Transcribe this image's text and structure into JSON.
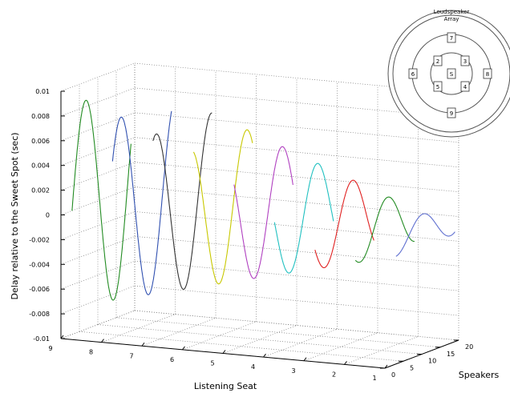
{
  "chart_data": {
    "type": "line",
    "subtype": "3d-line",
    "xlabel": "Listening Seat",
    "ylabel": "Speakers",
    "zlabel": "Delay relative to the Sweet Spot (sec)",
    "xlim": [
      1,
      9
    ],
    "xlim_reversed": true,
    "ylim": [
      0,
      20
    ],
    "zlim": [
      -0.01,
      0.01
    ],
    "x_ticks": [
      1,
      2,
      3,
      4,
      5,
      6,
      7,
      8,
      9
    ],
    "y_ticks": [
      0,
      5,
      10,
      15,
      20
    ],
    "z_ticks": [
      "-0.01",
      "-0.008",
      "-0.006",
      "-0.004",
      "-0.002",
      "0",
      "0.002",
      "0.004",
      "0.006",
      "0.008",
      "0.01"
    ],
    "grid": true,
    "series": [
      {
        "seat": 9,
        "color": "#228B22"
      },
      {
        "seat": 8,
        "color": "#3050b0"
      },
      {
        "seat": 7,
        "color": "#333333"
      },
      {
        "seat": 6,
        "color": "#c8c800"
      },
      {
        "seat": 5,
        "color": "#b040c0"
      },
      {
        "seat": 4,
        "color": "#20c0c0"
      },
      {
        "seat": 3,
        "color": "#e02020"
      },
      {
        "seat": 2,
        "color": "#228B22"
      },
      {
        "seat": 1,
        "color": "#6070d0"
      }
    ]
  },
  "inset": {
    "title": "Loudspeaker Array",
    "title_line1": "Loudspeaker",
    "title_line2": "Array",
    "center_label": "S",
    "speaker_labels": [
      "7",
      "2",
      "3",
      "6",
      "S",
      "8",
      "5",
      "4",
      "9"
    ]
  }
}
